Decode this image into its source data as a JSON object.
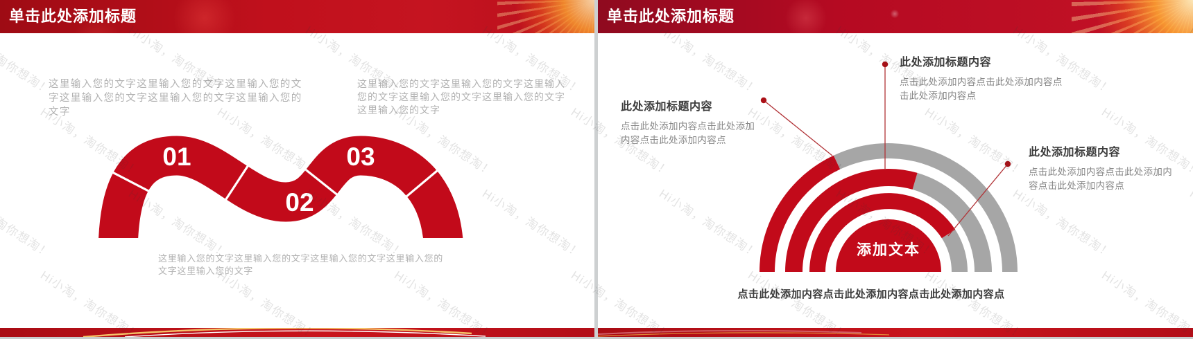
{
  "watermark": {
    "text": "Hi小淘，淘你想淘！"
  },
  "slide_left": {
    "title": "单击此处添加标题",
    "paragraph_top_left": "这里输入您的文字这里输入您的文字这里输入您的文字这里输入您的文字这里输入您的文字这里输入您的文字",
    "paragraph_top_right": "这里输入您的文字这里输入您的文字这里输入您的文字这里输入您的文字这里输入您的文字这里输入您的文字",
    "paragraph_bottom": "这里输入您的文字这里输入您的文字这里输入您的文字这里输入您的文字这里输入您的文字",
    "steps": [
      {
        "num": "01"
      },
      {
        "num": "02"
      },
      {
        "num": "03"
      }
    ]
  },
  "slide_right": {
    "title": "单击此处添加标题",
    "center_label": "添加文本",
    "callouts": [
      {
        "title": "此处添加标题内容",
        "desc": "点击此处添加内容点击此处添加内容点击此处添加内容点"
      },
      {
        "title": "此处添加标题内容",
        "desc": "点击此处添加内容点击此处添加内容点击此处添加内容点"
      },
      {
        "title": "此处添加标题内容",
        "desc": "点击此处添加内容点击此处添加内容点击此处添加内容点"
      }
    ],
    "bottom_text": "点击此处添加内容点击此处添加内容点击此处添加内容点"
  },
  "chart_data": {
    "type": "gauge",
    "style": "semicircle-concentric-rings",
    "title": "添加文本",
    "series": [
      {
        "name": "inner-ring",
        "value": 0.82,
        "sweep_deg": 147
      },
      {
        "name": "middle-ring",
        "value": 0.59,
        "sweep_deg": 106
      },
      {
        "name": "outer-ring",
        "value": 0.36,
        "sweep_deg": 64
      }
    ],
    "colors": {
      "filled": "#c20a1a",
      "unfilled": "#a6a6a6"
    },
    "legend_position": "none"
  }
}
